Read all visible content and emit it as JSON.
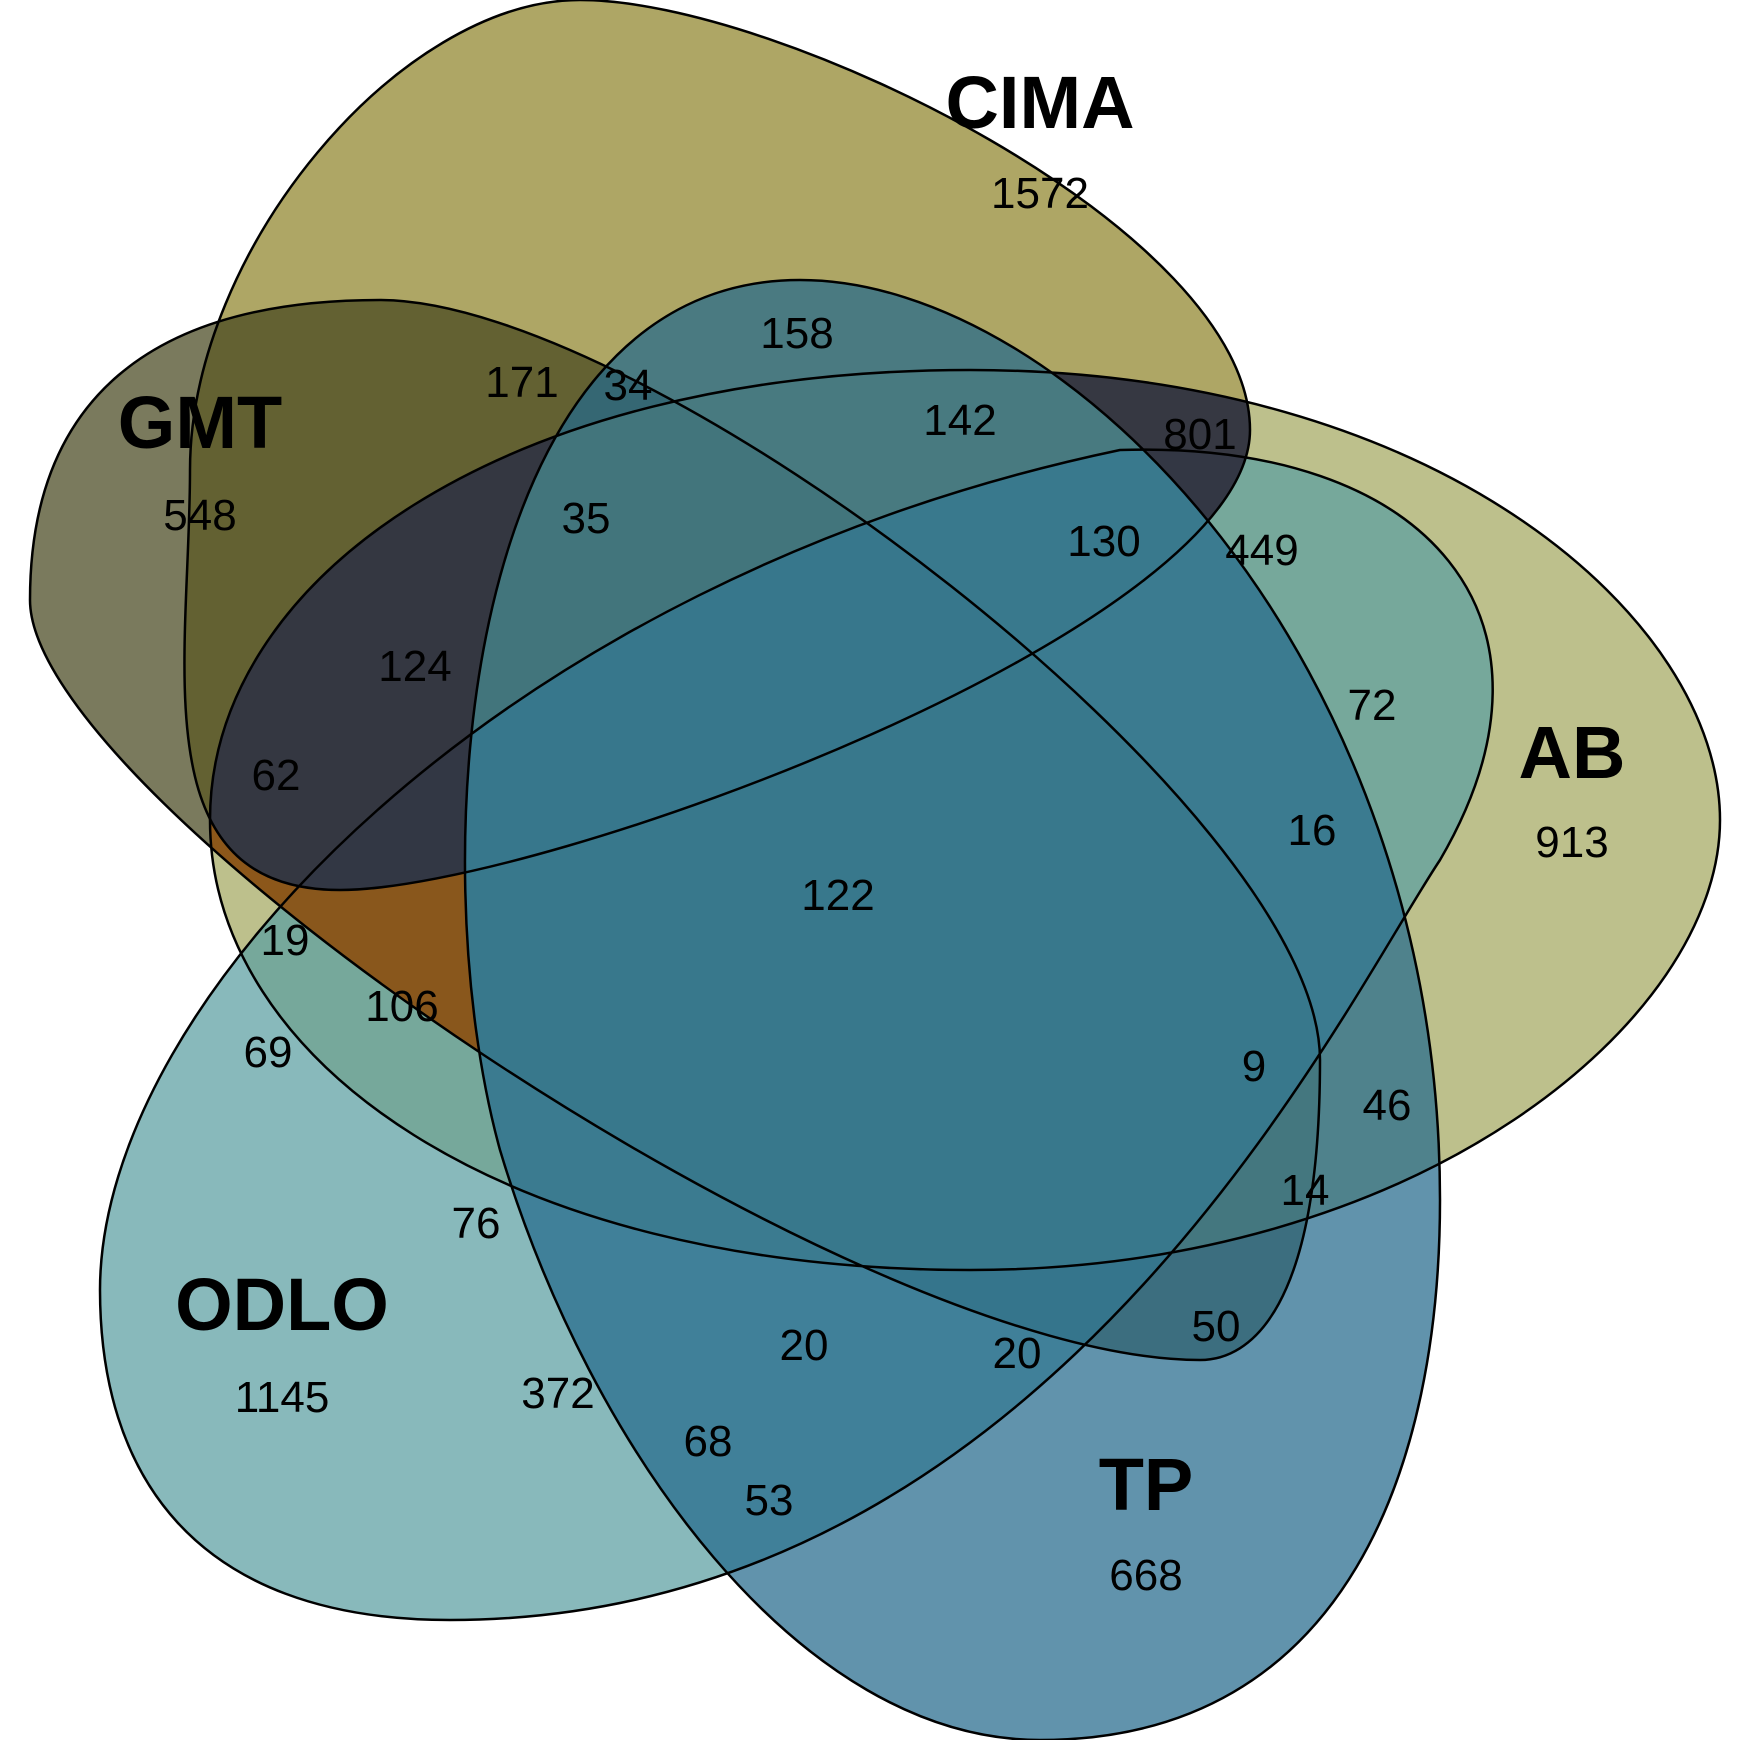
{
  "sets": [
    {
      "id": "cima",
      "name": "CIMA",
      "unique": "1572",
      "color": "#8f842a"
    },
    {
      "id": "gmt",
      "name": "GMT",
      "unique": "548",
      "color": "#46471e"
    },
    {
      "id": "ab",
      "name": "AB",
      "unique": "913",
      "color": "#a3a760"
    },
    {
      "id": "odlo",
      "name": "ODLO",
      "unique": "1145",
      "color": "#5a9ea1"
    },
    {
      "id": "tp",
      "name": "TP",
      "unique": "668",
      "color": "#246a8c"
    }
  ],
  "regions": [
    {
      "id": "r171",
      "value": "171"
    },
    {
      "id": "r34",
      "value": "34"
    },
    {
      "id": "r158",
      "value": "158"
    },
    {
      "id": "r142",
      "value": "142"
    },
    {
      "id": "r801",
      "value": "801"
    },
    {
      "id": "r35",
      "value": "35"
    },
    {
      "id": "r130",
      "value": "130"
    },
    {
      "id": "r449",
      "value": "449"
    },
    {
      "id": "r124",
      "value": "124"
    },
    {
      "id": "r72",
      "value": "72"
    },
    {
      "id": "r62",
      "value": "62"
    },
    {
      "id": "r16",
      "value": "16"
    },
    {
      "id": "r122",
      "value": "122"
    },
    {
      "id": "r19",
      "value": "19"
    },
    {
      "id": "r106",
      "value": "106"
    },
    {
      "id": "r69",
      "value": "69"
    },
    {
      "id": "r9",
      "value": "9"
    },
    {
      "id": "r46",
      "value": "46"
    },
    {
      "id": "r14",
      "value": "14"
    },
    {
      "id": "r76",
      "value": "76"
    },
    {
      "id": "r50",
      "value": "50"
    },
    {
      "id": "r20a",
      "value": "20"
    },
    {
      "id": "r20b",
      "value": "20"
    },
    {
      "id": "r372",
      "value": "372"
    },
    {
      "id": "r68",
      "value": "68"
    },
    {
      "id": "r53",
      "value": "53"
    }
  ],
  "special_region_colors": {
    "cima_ab_only": "#2f3140",
    "gmt_ab_only": "#8b5316",
    "ab_cima_tp": "#b9963f",
    "ab_tp_only": "#d4bf85"
  }
}
